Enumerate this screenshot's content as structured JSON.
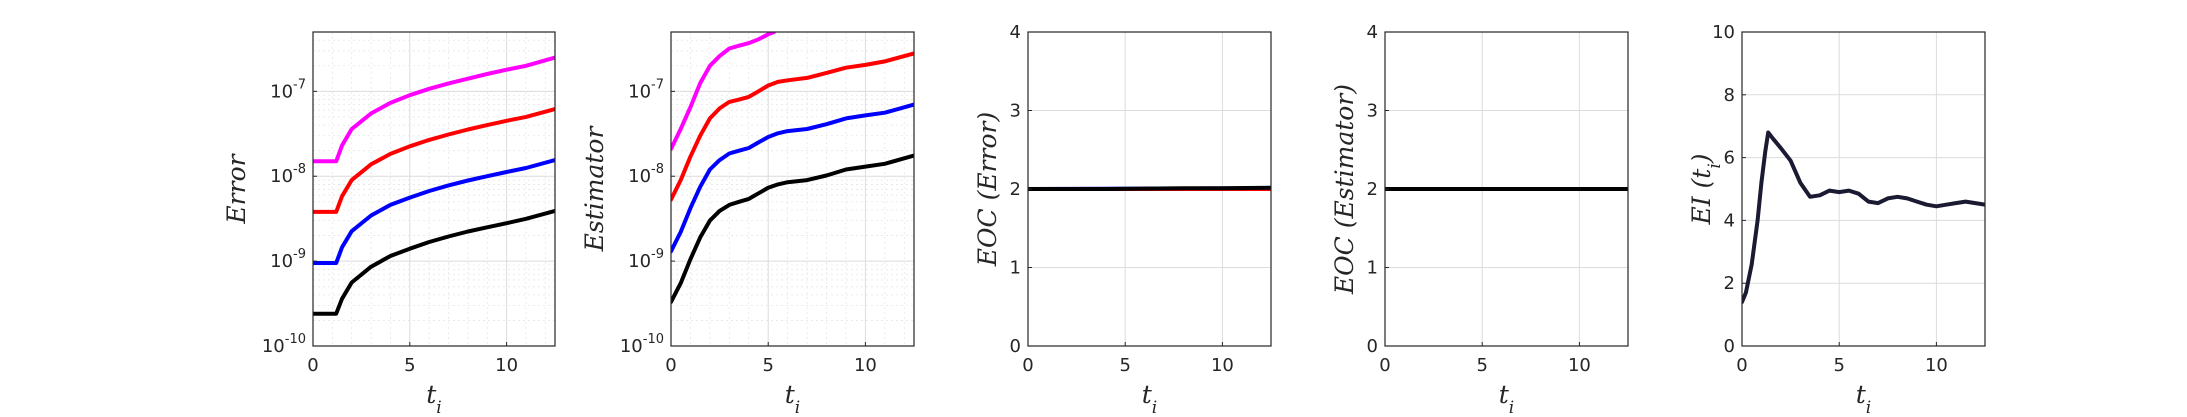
{
  "chart_data": [
    {
      "type": "line",
      "ylabel": "Error",
      "xlabel": "t_i",
      "xlim": [
        0,
        12.5
      ],
      "ylim": [
        1e-10,
        5e-07
      ],
      "yscale": "log",
      "xticks": [
        "0",
        "5",
        "10"
      ],
      "yticks": [
        {
          "v": 1e-10,
          "label": "10",
          "exp": "-10"
        },
        {
          "v": 1e-09,
          "label": "10",
          "exp": "-9"
        },
        {
          "v": 1e-08,
          "label": "10",
          "exp": "-8"
        },
        {
          "v": 1e-07,
          "label": "10",
          "exp": "-7"
        }
      ],
      "grid": true,
      "series": [
        {
          "color": "#ff00ff",
          "x": [
            0,
            1.2,
            1.5,
            2,
            3,
            4,
            5,
            6,
            7,
            8,
            9,
            10,
            11,
            12.5
          ],
          "y": [
            1.5e-08,
            1.5e-08,
            2.3e-08,
            3.6e-08,
            5.5e-08,
            7.3e-08,
            9e-08,
            1.07e-07,
            1.24e-07,
            1.41e-07,
            1.6e-07,
            1.8e-07,
            2e-07,
            2.5e-07
          ]
        },
        {
          "color": "#ff0000",
          "x": [
            0,
            1.2,
            1.5,
            2,
            3,
            4,
            5,
            6,
            7,
            8,
            9,
            10,
            11,
            12.5
          ],
          "y": [
            3.8e-09,
            3.8e-09,
            5.8e-09,
            9e-09,
            1.38e-08,
            1.83e-08,
            2.25e-08,
            2.68e-08,
            3.1e-08,
            3.55e-08,
            4e-08,
            4.5e-08,
            5e-08,
            6.2e-08
          ]
        },
        {
          "color": "#0000ff",
          "x": [
            0,
            1.2,
            1.5,
            2,
            3,
            4,
            5,
            6,
            7,
            8,
            9,
            10,
            11,
            12.5
          ],
          "y": [
            9.5e-10,
            9.5e-10,
            1.45e-09,
            2.25e-09,
            3.45e-09,
            4.6e-09,
            5.6e-09,
            6.7e-09,
            7.8e-09,
            8.9e-09,
            1e-08,
            1.12e-08,
            1.25e-08,
            1.55e-08
          ]
        },
        {
          "color": "#000000",
          "x": [
            0,
            1.2,
            1.5,
            2,
            3,
            4,
            5,
            6,
            7,
            8,
            9,
            10,
            11,
            12.5
          ],
          "y": [
            2.4e-10,
            2.4e-10,
            3.6e-10,
            5.6e-10,
            8.6e-10,
            1.15e-09,
            1.4e-09,
            1.68e-09,
            1.95e-09,
            2.23e-09,
            2.5e-09,
            2.8e-09,
            3.15e-09,
            3.9e-09
          ]
        }
      ]
    },
    {
      "type": "line",
      "ylabel": "Estimator",
      "xlabel": "t_i",
      "xlim": [
        0,
        12.5
      ],
      "ylim": [
        1e-10,
        5e-07
      ],
      "yscale": "log",
      "xticks": [
        "0",
        "5",
        "10"
      ],
      "yticks": [
        {
          "v": 1e-10,
          "label": "10",
          "exp": "-10"
        },
        {
          "v": 1e-09,
          "label": "10",
          "exp": "-9"
        },
        {
          "v": 1e-08,
          "label": "10",
          "exp": "-8"
        },
        {
          "v": 1e-07,
          "label": "10",
          "exp": "-7"
        }
      ],
      "grid": true,
      "series": [
        {
          "color": "#ff00ff",
          "x": [
            0,
            0.5,
            1,
            1.5,
            2,
            2.5,
            3,
            3.5,
            4,
            4.5,
            5,
            5.3
          ],
          "y": [
            2.1e-08,
            3.6e-08,
            6.5e-08,
            1.25e-07,
            2e-07,
            2.6e-07,
            3.2e-07,
            3.45e-07,
            3.7e-07,
            4.1e-07,
            4.7e-07,
            5e-07
          ]
        },
        {
          "color": "#ff0000",
          "x": [
            0,
            0.5,
            1,
            1.5,
            2,
            2.5,
            3,
            3.5,
            4,
            4.5,
            5,
            5.5,
            6,
            7,
            8,
            9,
            10,
            11,
            12.5
          ],
          "y": [
            5.3e-09,
            9e-09,
            1.7e-08,
            3e-08,
            4.8e-08,
            6.3e-08,
            7.5e-08,
            8e-08,
            8.6e-08,
            1e-07,
            1.17e-07,
            1.29e-07,
            1.35e-07,
            1.44e-07,
            1.65e-07,
            1.9e-07,
            2.05e-07,
            2.25e-07,
            2.8e-07
          ]
        },
        {
          "color": "#0000ff",
          "x": [
            0,
            0.5,
            1,
            1.5,
            2,
            2.5,
            3,
            3.5,
            4,
            4.5,
            5,
            5.5,
            6,
            7,
            8,
            9,
            10,
            11,
            12.5
          ],
          "y": [
            1.3e-09,
            2.2e-09,
            4.2e-09,
            7.5e-09,
            1.2e-08,
            1.55e-08,
            1.85e-08,
            2e-08,
            2.15e-08,
            2.5e-08,
            2.9e-08,
            3.2e-08,
            3.4e-08,
            3.6e-08,
            4.1e-08,
            4.8e-08,
            5.2e-08,
            5.6e-08,
            7e-08
          ]
        },
        {
          "color": "#000000",
          "x": [
            0,
            0.5,
            1,
            1.5,
            2,
            2.5,
            3,
            3.5,
            4,
            4.5,
            5,
            5.5,
            6,
            7,
            8,
            9,
            10,
            11,
            12.5
          ],
          "y": [
            3.3e-10,
            5.5e-10,
            1.05e-09,
            1.9e-09,
            3e-09,
            3.9e-09,
            4.6e-09,
            5e-09,
            5.4e-09,
            6.3e-09,
            7.3e-09,
            8e-09,
            8.5e-09,
            9e-09,
            1.02e-08,
            1.2e-08,
            1.3e-08,
            1.4e-08,
            1.75e-08
          ]
        }
      ]
    },
    {
      "type": "line",
      "ylabel": "EOC (Error)",
      "xlabel": "t_i",
      "xlim": [
        0,
        12.5
      ],
      "ylim": [
        0,
        4
      ],
      "yscale": "linear",
      "xticks": [
        "0",
        "5",
        "10"
      ],
      "yticks": [
        {
          "v": 0,
          "label": "0"
        },
        {
          "v": 1,
          "label": "1"
        },
        {
          "v": 2,
          "label": "2"
        },
        {
          "v": 3,
          "label": "3"
        },
        {
          "v": 4,
          "label": "4"
        }
      ],
      "grid": true,
      "series": [
        {
          "color": "#0000ff",
          "x": [
            0,
            12.5
          ],
          "y": [
            2.0,
            2.01
          ]
        },
        {
          "color": "#ff0000",
          "x": [
            0,
            12.5
          ],
          "y": [
            2.0,
            2.0
          ]
        },
        {
          "color": "#000000",
          "x": [
            0,
            2,
            4,
            6,
            8,
            10,
            12.5
          ],
          "y": [
            2.0,
            2.0,
            2.0,
            2.005,
            2.01,
            2.01,
            2.015
          ]
        }
      ]
    },
    {
      "type": "line",
      "ylabel": "EOC (Estimator)",
      "xlabel": "t_i",
      "xlim": [
        0,
        12.5
      ],
      "ylim": [
        0,
        4
      ],
      "yscale": "linear",
      "xticks": [
        "0",
        "5",
        "10"
      ],
      "yticks": [
        {
          "v": 0,
          "label": "0"
        },
        {
          "v": 1,
          "label": "1"
        },
        {
          "v": 2,
          "label": "2"
        },
        {
          "v": 3,
          "label": "3"
        },
        {
          "v": 4,
          "label": "4"
        }
      ],
      "grid": true,
      "series": [
        {
          "color": "#0000ff",
          "x": [
            0,
            12.5
          ],
          "y": [
            2.0,
            2.0
          ]
        },
        {
          "color": "#000000",
          "x": [
            0,
            12.5
          ],
          "y": [
            2.0,
            2.0
          ]
        }
      ]
    },
    {
      "type": "line",
      "ylabel": "EI (t_i)",
      "xlabel": "t_i",
      "xlim": [
        0,
        12.5
      ],
      "ylim": [
        0,
        10
      ],
      "yscale": "linear",
      "xticks": [
        "0",
        "5",
        "10"
      ],
      "yticks": [
        {
          "v": 0,
          "label": "0"
        },
        {
          "v": 2,
          "label": "2"
        },
        {
          "v": 4,
          "label": "4"
        },
        {
          "v": 6,
          "label": "6"
        },
        {
          "v": 8,
          "label": "8"
        },
        {
          "v": 10,
          "label": "10"
        }
      ],
      "grid": true,
      "series": [
        {
          "color": "#1a1a33",
          "x": [
            0,
            0.2,
            0.5,
            0.8,
            1.0,
            1.2,
            1.35,
            1.6,
            2.0,
            2.5,
            3.0,
            3.5,
            4.0,
            4.5,
            5.0,
            5.5,
            6.0,
            6.5,
            7.0,
            7.5,
            8.0,
            8.5,
            9.0,
            9.5,
            10.0,
            10.5,
            11.0,
            11.5,
            12.0,
            12.5
          ],
          "y": [
            1.4,
            1.7,
            2.6,
            4.0,
            5.2,
            6.2,
            6.8,
            6.6,
            6.3,
            5.9,
            5.2,
            4.75,
            4.8,
            4.95,
            4.9,
            4.95,
            4.85,
            4.6,
            4.55,
            4.7,
            4.75,
            4.7,
            4.6,
            4.5,
            4.45,
            4.5,
            4.55,
            4.6,
            4.55,
            4.5
          ]
        }
      ]
    }
  ]
}
